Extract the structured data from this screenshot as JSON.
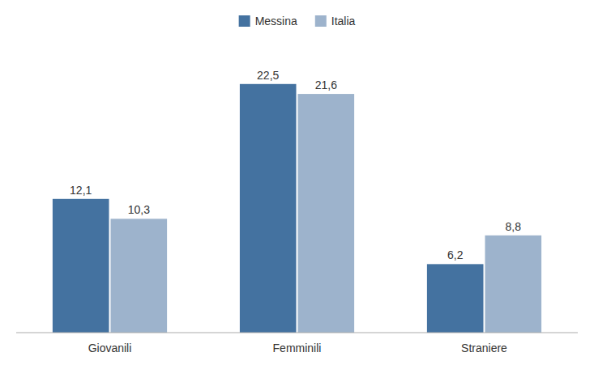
{
  "chart_data": {
    "type": "bar",
    "categories": [
      "Giovanili",
      "Femminili",
      "Straniere"
    ],
    "series": [
      {
        "name": "Messina",
        "color": "#4472a0",
        "values": [
          12.1,
          22.5,
          6.2
        ],
        "value_labels": [
          "12,1",
          "22,5",
          "6,2"
        ]
      },
      {
        "name": "Italia",
        "color": "#9db3cc",
        "values": [
          10.3,
          21.6,
          8.8
        ],
        "value_labels": [
          "10,3",
          "21,6",
          "8,8"
        ]
      }
    ],
    "ylim": [
      0,
      26
    ],
    "data_labels": true,
    "tick_labels": "x",
    "grid": false,
    "legend": "top"
  }
}
